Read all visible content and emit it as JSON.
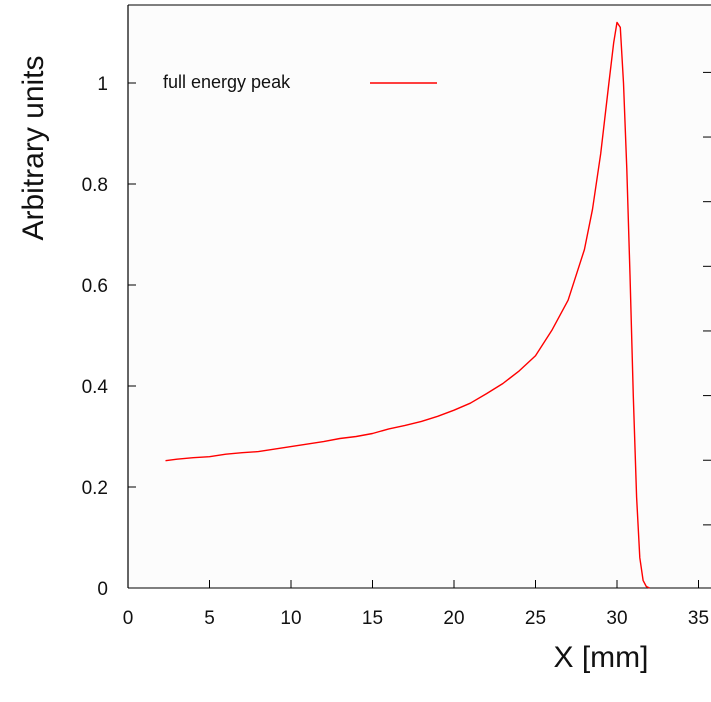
{
  "chart_data": {
    "type": "line",
    "xlabel": "X [mm]",
    "ylabel": "Arbitrary units",
    "xlim": [
      0,
      35
    ],
    "ylim": [
      0,
      1.15
    ],
    "xticks": [
      "0",
      "5",
      "10",
      "15",
      "20",
      "25",
      "30",
      "35"
    ],
    "yticks": [
      "0",
      "0.2",
      "0.4",
      "0.6",
      "0.8",
      "1"
    ],
    "grid": false,
    "legend_position": "top-left",
    "series": [
      {
        "name": "full energy peak",
        "color": "#ff0000",
        "x": [
          2.3,
          3,
          4,
          5,
          6,
          7,
          8,
          9,
          10,
          11,
          12,
          13,
          14,
          15,
          16,
          17,
          18,
          19,
          20,
          21,
          22,
          23,
          24,
          25,
          26,
          27,
          28,
          28.5,
          29,
          29.5,
          29.8,
          30.0,
          30.2,
          30.4,
          30.6,
          30.8,
          31.0,
          31.2,
          31.4,
          31.6,
          31.8,
          32.0
        ],
        "y": [
          0.252,
          0.255,
          0.258,
          0.26,
          0.265,
          0.268,
          0.27,
          0.275,
          0.28,
          0.285,
          0.29,
          0.296,
          0.3,
          0.306,
          0.315,
          0.322,
          0.33,
          0.34,
          0.352,
          0.366,
          0.385,
          0.405,
          0.43,
          0.46,
          0.51,
          0.57,
          0.67,
          0.75,
          0.86,
          1.0,
          1.08,
          1.12,
          1.11,
          1.0,
          0.83,
          0.62,
          0.38,
          0.18,
          0.06,
          0.015,
          0.003,
          0.0
        ]
      }
    ]
  }
}
